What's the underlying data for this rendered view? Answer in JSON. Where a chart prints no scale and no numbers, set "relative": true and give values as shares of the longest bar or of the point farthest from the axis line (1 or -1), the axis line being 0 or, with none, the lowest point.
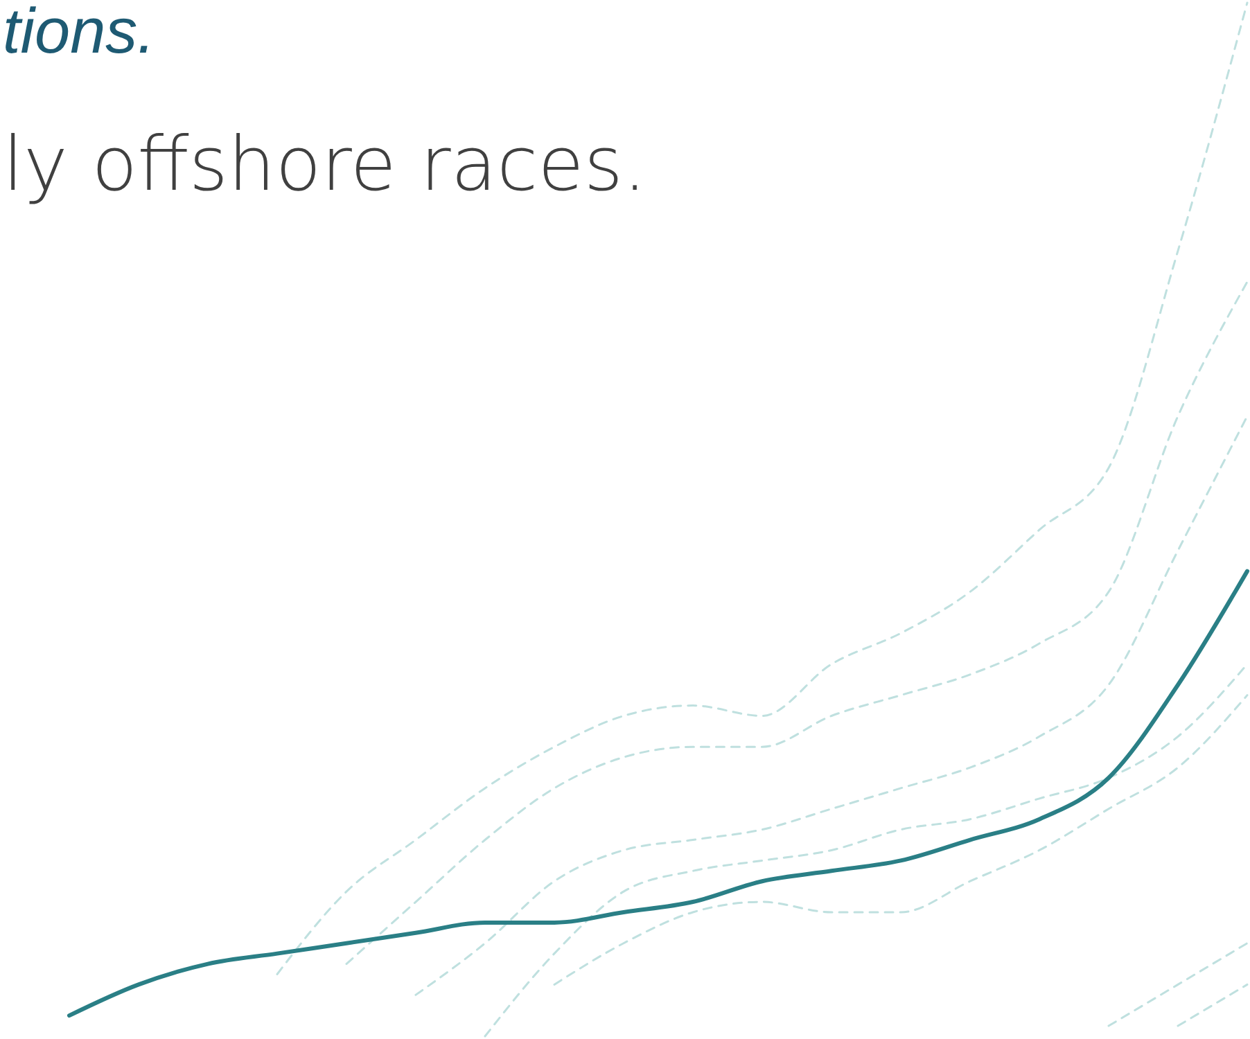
{
  "chart_data": {
    "type": "line",
    "title": "tions.",
    "subtitle": "ly offshore races.",
    "relative": true,
    "categories": [
      null,
      null,
      null,
      null,
      null,
      null,
      null,
      null,
      null,
      null,
      null,
      null,
      null,
      null,
      null,
      null,
      null,
      null,
      null
    ],
    "series": [
      {
        "color": "#bfe0df",
        "line_style": "dashed",
        "values": [
          null,
          null,
          null,
          null,
          0.06,
          0.14,
          0.19,
          0.24,
          0.28,
          0.31,
          0.32,
          0.31,
          0.36,
          0.39,
          0.43,
          0.49,
          0.55,
          0.76,
          1.0
        ]
      },
      {
        "color": "#bfe0df",
        "line_style": "dashed",
        "values": [
          null,
          null,
          null,
          null,
          null,
          0.07,
          0.13,
          0.19,
          0.24,
          0.27,
          0.28,
          0.28,
          0.31,
          0.33,
          0.35,
          0.38,
          0.43,
          0.6,
          0.73
        ]
      },
      {
        "color": "#bfe0df",
        "line_style": "dashed",
        "values": [
          null,
          null,
          null,
          null,
          null,
          null,
          0.04,
          0.09,
          0.15,
          0.18,
          0.19,
          0.2,
          0.22,
          0.24,
          0.26,
          0.29,
          0.34,
          0.47,
          0.6
        ]
      },
      {
        "color": "#bfe0df",
        "line_style": "dashed",
        "values": [
          null,
          null,
          null,
          null,
          null,
          null,
          null,
          0,
          0.08,
          0.14,
          0.16,
          0.17,
          0.18,
          0.2,
          0.21,
          0.23,
          0.25,
          0.29,
          0.36
        ]
      },
      {
        "color": "#bfe0df",
        "line_style": "dashed",
        "values": [
          null,
          null,
          null,
          null,
          null,
          null,
          null,
          null,
          0.05,
          0.09,
          0.12,
          0.13,
          0.12,
          0.12,
          0.15,
          0.18,
          0.22,
          0.26,
          0.33
        ]
      },
      {
        "color": "#bfe0df",
        "line_style": "dashed",
        "values": [
          null,
          null,
          null,
          null,
          null,
          null,
          null,
          null,
          null,
          null,
          null,
          null,
          null,
          null,
          null,
          null,
          0.01,
          0.05,
          0.09
        ]
      },
      {
        "color": "#bfe0df",
        "line_style": "dashed",
        "values": [
          null,
          null,
          null,
          null,
          null,
          null,
          null,
          null,
          null,
          null,
          null,
          null,
          null,
          null,
          null,
          null,
          null,
          0.01,
          0.05
        ]
      },
      {
        "color": "#2a7f86",
        "line_style": "solid",
        "values": [
          null,
          0.02,
          0.05,
          0.07,
          0.08,
          0.09,
          0.1,
          0.11,
          0.11,
          0.12,
          0.13,
          0.15,
          0.16,
          0.17,
          0.19,
          0.21,
          0.25,
          0.34,
          0.45
        ]
      }
    ]
  }
}
